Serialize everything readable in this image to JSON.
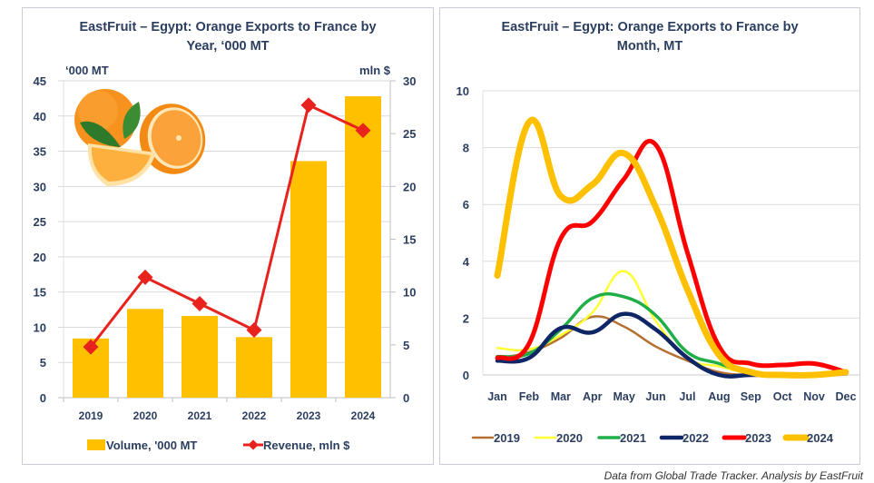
{
  "footer": "Data from Global Trade Tracker. Analysis by  EastFruit",
  "chart_data": [
    {
      "type": "bar",
      "title_line1": "EastFruit – Egypt: Orange Exports to France by",
      "title_line2": "Year, ‘000 MT",
      "ylabel_left": "‘000 MT",
      "ylabel_right": "mln $",
      "categories": [
        "2019",
        "2020",
        "2021",
        "2022",
        "2023",
        "2024"
      ],
      "ylim_left": [
        0,
        45
      ],
      "yticks_left": [
        "0",
        "5",
        "10",
        "15",
        "20",
        "25",
        "30",
        "35",
        "40",
        "45"
      ],
      "ylim_right": [
        0,
        30
      ],
      "yticks_right": [
        "0",
        "5",
        "10",
        "15",
        "20",
        "25",
        "30"
      ],
      "grid": true,
      "legend_position": "bottom",
      "series": [
        {
          "name": "Volume, '000 MT",
          "kind": "bar",
          "axis": "left",
          "color": "#FFC000",
          "values": [
            8.4,
            12.6,
            11.6,
            8.6,
            33.6,
            42.8
          ]
        },
        {
          "name": "Revenue, mln $",
          "kind": "line",
          "axis": "right",
          "color": "#E8221C",
          "marker": "diamond",
          "values": [
            4.8,
            11.4,
            8.9,
            6.4,
            27.7,
            25.3
          ]
        }
      ],
      "image": "oranges-illustration"
    },
    {
      "type": "line",
      "title_line1": "EastFruit – Egypt: Orange Exports to France by",
      "title_line2": "Month, MT",
      "categories": [
        "Jan",
        "Feb",
        "Mar",
        "Apr",
        "May",
        "Jun",
        "Jul",
        "Aug",
        "Sep",
        "Oct",
        "Nov",
        "Dec"
      ],
      "ylim": [
        0,
        10
      ],
      "yticks": [
        "0",
        "2",
        "4",
        "6",
        "8",
        "10"
      ],
      "grid": true,
      "smooth": true,
      "legend_position": "bottom",
      "series": [
        {
          "name": "2019",
          "color": "#B5702F",
          "values": [
            0.6,
            0.8,
            1.3,
            2.05,
            1.7,
            1.0,
            0.5,
            0.1,
            0.0,
            0.0,
            0.0,
            0.05
          ]
        },
        {
          "name": "2020",
          "color": "#FFFF33",
          "values": [
            0.95,
            0.9,
            1.4,
            2.2,
            3.65,
            1.9,
            0.6,
            0.3,
            0.05,
            0.0,
            0.0,
            0.05
          ]
        },
        {
          "name": "2021",
          "color": "#1FAE48",
          "values": [
            0.65,
            0.75,
            1.6,
            2.7,
            2.75,
            2.1,
            0.8,
            0.4,
            0.05,
            0.0,
            0.0,
            0.05
          ]
        },
        {
          "name": "2022",
          "color": "#0E2566",
          "values": [
            0.5,
            0.6,
            1.65,
            1.5,
            2.15,
            1.6,
            0.6,
            0.0,
            0.0,
            0.0,
            0.0,
            0.05
          ]
        },
        {
          "name": "2023",
          "color": "#FF0000",
          "values": [
            0.6,
            1.1,
            4.8,
            5.4,
            6.9,
            8.1,
            4.3,
            1.0,
            0.4,
            0.35,
            0.4,
            0.1
          ]
        },
        {
          "name": "2024",
          "color": "#FFC000",
          "values": [
            3.5,
            8.9,
            6.3,
            6.7,
            7.8,
            5.9,
            3.0,
            0.7,
            0.1,
            0.0,
            0.0,
            0.1
          ]
        }
      ]
    }
  ]
}
